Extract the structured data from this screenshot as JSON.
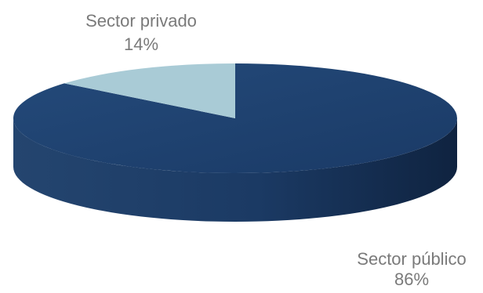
{
  "chart_data": {
    "type": "pie",
    "style": "3d",
    "title": "",
    "slices": [
      {
        "label": "Sector público",
        "value": 86,
        "value_label": "86%",
        "color": "#1f3f6e"
      },
      {
        "label": "Sector privado",
        "value": 14,
        "value_label": "14%",
        "color": "#a9cbd6"
      }
    ]
  }
}
